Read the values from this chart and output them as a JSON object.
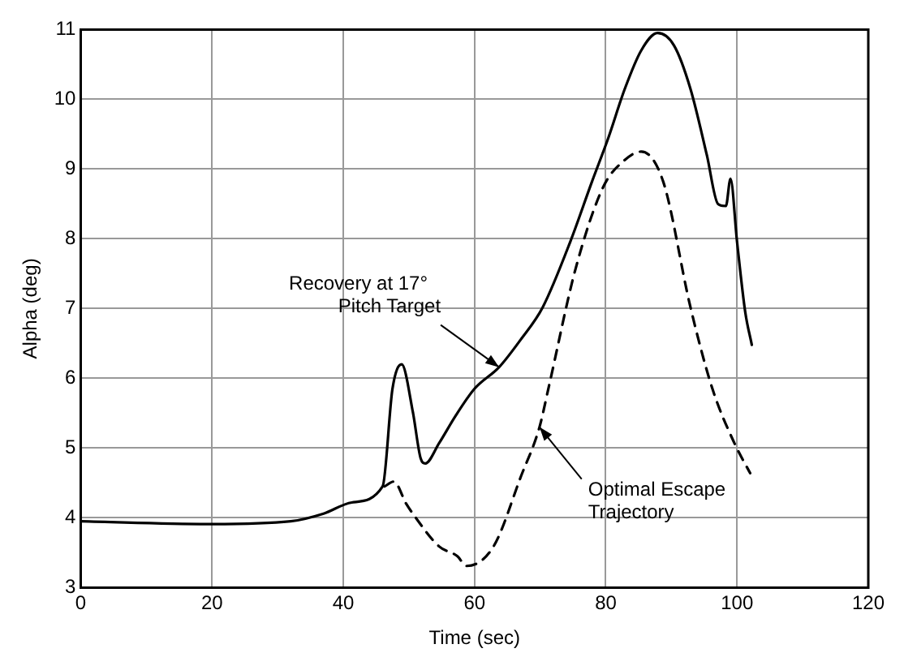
{
  "chart_data": {
    "type": "line",
    "xlabel": "Time (sec)",
    "ylabel": "Alpha (deg)",
    "xlim": [
      0,
      120
    ],
    "ylim": [
      3,
      11
    ],
    "xticks": [
      0,
      20,
      40,
      60,
      80,
      100,
      120
    ],
    "yticks": [
      3,
      4,
      5,
      6,
      7,
      8,
      9,
      10,
      11
    ],
    "grid": true,
    "legend": false,
    "marker": "none",
    "annotations": [
      {
        "text": "Recovery at 17°\nPitch Target",
        "x": 63.75,
        "y": 6.16
      },
      {
        "text": "Optimal Escape\nTrajectory",
        "x": 69.9,
        "y": 5.3
      }
    ],
    "series": [
      {
        "color": "#000000",
        "line_style": "solid",
        "x": [
          0,
          20,
          32,
          37,
          41.3,
          46,
          47.5,
          48.9,
          50.6,
          51.8,
          52.5,
          54.6,
          57.1,
          60,
          63.75,
          67,
          70.4,
          74.6,
          77.9,
          80.4,
          82.9,
          85.4,
          87.9,
          90.4,
          92.9,
          95.4,
          97.1,
          98.3,
          99,
          100,
          101.25,
          102.25
        ],
        "values": [
          3.95,
          3.91,
          3.95,
          4.06,
          4.22,
          4.45,
          5.85,
          6.2,
          5.52,
          4.85,
          4.78,
          5.07,
          5.46,
          5.85,
          6.16,
          6.55,
          7.02,
          7.96,
          8.82,
          9.45,
          10.15,
          10.7,
          10.95,
          10.77,
          10.15,
          9.2,
          8.5,
          8.47,
          8.86,
          7.96,
          6.95,
          6.48
        ]
      },
      {
        "color": "#000000",
        "line_style": "dashed",
        "x": [
          46.3,
          47.7,
          49.6,
          50.6,
          54.6,
          57.4,
          58.75,
          62.9,
          67.1,
          69.9,
          71.25,
          75.4,
          79.6,
          82.9,
          85.4,
          88.75,
          92.9,
          96.25,
          99.6,
          102
        ],
        "values": [
          4.45,
          4.52,
          4.2,
          4.06,
          3.59,
          3.45,
          3.31,
          3.59,
          4.6,
          5.3,
          5.85,
          7.57,
          8.74,
          9.13,
          9.25,
          8.82,
          7.02,
          5.85,
          5.07,
          4.64
        ]
      }
    ]
  }
}
